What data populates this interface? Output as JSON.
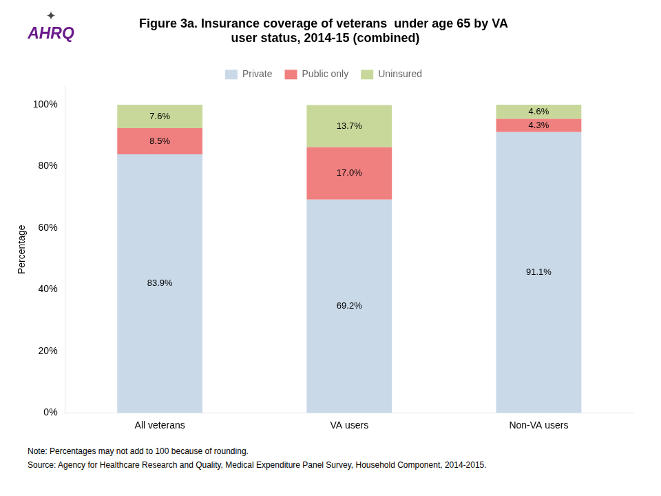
{
  "chart_data": {
    "type": "bar",
    "title": "Figure 3a. Insurance coverage of veterans  under age 65 by VA\n user status, 2014-15 (combined)",
    "categories": [
      "All veterans",
      "VA users",
      "Non-VA users"
    ],
    "series": [
      {
        "name": "Private",
        "color": "#c9d9e8",
        "values": [
          83.9,
          69.2,
          91.1
        ],
        "value_labels": [
          "83.9%",
          "69.2%",
          "91.1%"
        ]
      },
      {
        "name": "Public only",
        "color": "#f08080",
        "values": [
          8.5,
          17.0,
          4.3
        ],
        "value_labels": [
          "8.5%",
          "17.0%",
          "4.3%"
        ]
      },
      {
        "name": "Uninsured",
        "color": "#c8d89a",
        "values": [
          7.6,
          13.7,
          4.6
        ],
        "value_labels": [
          "7.6%",
          "13.7%",
          "4.6%"
        ]
      }
    ],
    "y_label": "Percentage",
    "ylim": [
      0,
      106
    ],
    "yticks": [
      {
        "value": 0,
        "label": "0%"
      },
      {
        "value": 20,
        "label": "20%"
      },
      {
        "value": 40,
        "label": "40%"
      },
      {
        "value": 60,
        "label": "60%"
      },
      {
        "value": 80,
        "label": "80%"
      },
      {
        "value": 100,
        "label": "100%"
      }
    ],
    "stacked": true,
    "data_labels": true,
    "grid": false,
    "legend": "top",
    "annotations": [
      "✦",
      "AHRQ",
      "Note: Percentages may not add to 100 because of rounding.",
      "Source: Agency for Healthcare Research and Quality, Medical Expenditure Panel Survey, Household Component, 2014-2015."
    ]
  }
}
